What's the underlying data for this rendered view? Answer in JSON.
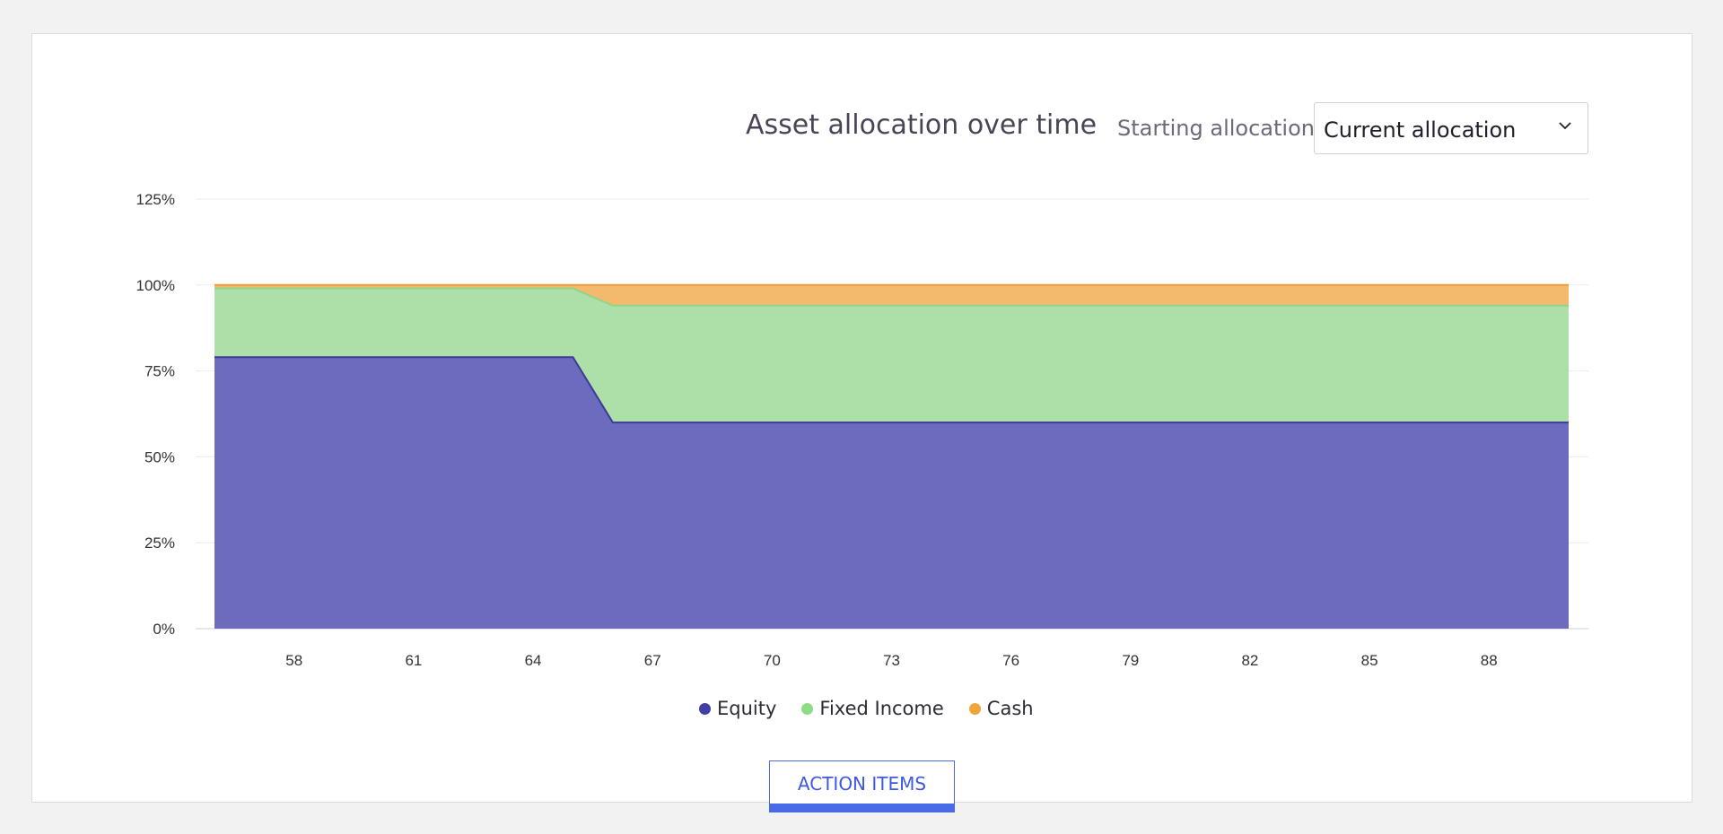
{
  "title": "Asset allocation over time",
  "starting_allocation": {
    "label": "Starting allocation:",
    "selected": "Current allocation"
  },
  "action_button": "ACTION ITEMS",
  "colors": {
    "equity": "#6c6bbd",
    "equity_line": "#3c3b98",
    "fixed_income": "#addfa8",
    "fixed_income_line": "#8fd58a",
    "cash": "#f3b96c",
    "cash_line": "#ee9d3c",
    "legend_equity": "#3f3fa5",
    "legend_fixed_income": "#8edc86",
    "legend_cash": "#f0a43c"
  },
  "chart_data": {
    "type": "area",
    "stacked": true,
    "x": [
      56,
      57,
      58,
      59,
      60,
      61,
      62,
      63,
      64,
      65,
      66,
      67,
      68,
      69,
      70,
      71,
      72,
      73,
      74,
      75,
      76,
      77,
      78,
      79,
      80,
      81,
      82,
      83,
      84,
      85,
      86,
      87,
      88,
      89,
      90
    ],
    "x_ticks": [
      "58",
      "61",
      "64",
      "67",
      "70",
      "73",
      "76",
      "79",
      "82",
      "85",
      "88"
    ],
    "y_ticks": [
      "0%",
      "25%",
      "50%",
      "75%",
      "100%",
      "125%"
    ],
    "ylim": [
      0,
      125
    ],
    "grid": true,
    "legend_position": "bottom",
    "series": [
      {
        "name": "Equity",
        "values": [
          79,
          79,
          79,
          79,
          79,
          79,
          79,
          79,
          79,
          79,
          60,
          60,
          60,
          60,
          60,
          60,
          60,
          60,
          60,
          60,
          60,
          60,
          60,
          60,
          60,
          60,
          60,
          60,
          60,
          60,
          60,
          60,
          60,
          60,
          60
        ]
      },
      {
        "name": "Fixed Income",
        "values": [
          20,
          20,
          20,
          20,
          20,
          20,
          20,
          20,
          20,
          20,
          34,
          34,
          34,
          34,
          34,
          34,
          34,
          34,
          34,
          34,
          34,
          34,
          34,
          34,
          34,
          34,
          34,
          34,
          34,
          34,
          34,
          34,
          34,
          34,
          34
        ]
      },
      {
        "name": "Cash",
        "values": [
          1,
          1,
          1,
          1,
          1,
          1,
          1,
          1,
          1,
          1,
          6,
          6,
          6,
          6,
          6,
          6,
          6,
          6,
          6,
          6,
          6,
          6,
          6,
          6,
          6,
          6,
          6,
          6,
          6,
          6,
          6,
          6,
          6,
          6,
          6
        ]
      }
    ]
  }
}
